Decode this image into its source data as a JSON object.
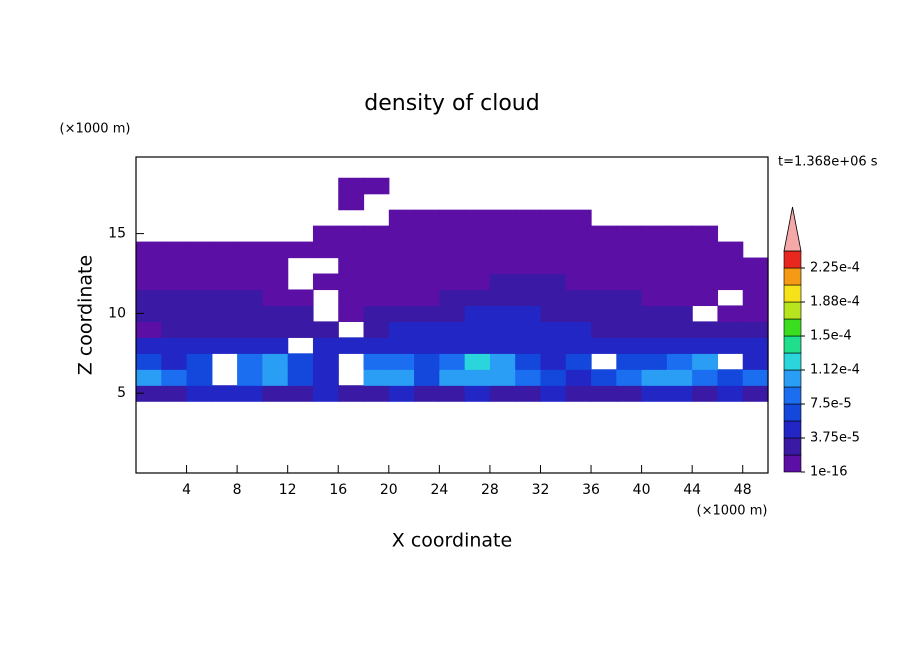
{
  "chart_data": {
    "type": "contour",
    "title": "density of cloud",
    "xlabel": "X coordinate",
    "ylabel": "Z coordinate",
    "x_unit": "(×1000 m)",
    "y_unit": "(×1000 m)",
    "annotation": "t=1.368e+06 s",
    "xlim": [
      0,
      50
    ],
    "ylim": [
      0,
      19.8
    ],
    "xticks": [
      4,
      8,
      12,
      16,
      20,
      24,
      28,
      32,
      36,
      40,
      44,
      48
    ],
    "yticks": [
      5,
      10,
      15
    ],
    "x": [
      1,
      3,
      5,
      7,
      9,
      11,
      13,
      15,
      17,
      19,
      21,
      23,
      25,
      27,
      29,
      31,
      33,
      35,
      37,
      39,
      41,
      43,
      45,
      47,
      49
    ],
    "z": [
      5,
      6,
      7,
      8,
      9,
      10,
      11,
      12,
      13,
      14,
      15,
      16,
      17,
      18
    ],
    "values": [
      [
        3e-05,
        3e-05,
        5e-05,
        5e-05,
        5e-05,
        3e-05,
        3e-05,
        5e-05,
        3e-05,
        3e-05,
        5e-05,
        3e-05,
        3e-05,
        5e-05,
        3e-05,
        3e-05,
        5e-05,
        3e-05,
        3e-05,
        3e-05,
        5e-05,
        5e-05,
        3e-05,
        5e-05,
        3e-05
      ],
      [
        0.000105,
        8.5e-05,
        6.5e-05,
        null,
        8.5e-05,
        0.000105,
        6.5e-05,
        5e-05,
        null,
        0.000105,
        0.000105,
        6.5e-05,
        0.000105,
        0.000105,
        0.000105,
        8.5e-05,
        6.5e-05,
        5e-05,
        6.5e-05,
        8.5e-05,
        0.000105,
        0.000105,
        8.5e-05,
        6.5e-05,
        8.5e-05
      ],
      [
        6.5e-05,
        5e-05,
        6.5e-05,
        null,
        8.5e-05,
        0.000105,
        6.5e-05,
        5e-05,
        null,
        8.5e-05,
        8.5e-05,
        6.5e-05,
        8.5e-05,
        0.000125,
        0.000105,
        6.5e-05,
        5e-05,
        6.5e-05,
        null,
        6.5e-05,
        6.5e-05,
        8.5e-05,
        0.000105,
        null,
        5e-05
      ],
      [
        5e-05,
        5e-05,
        5e-05,
        5e-05,
        5e-05,
        5e-05,
        null,
        5e-05,
        5e-05,
        5e-05,
        5e-05,
        5e-05,
        5e-05,
        5e-05,
        5e-05,
        5e-05,
        5e-05,
        5e-05,
        5e-05,
        5e-05,
        5e-05,
        5e-05,
        5e-05,
        5e-05,
        5e-05
      ],
      [
        1e-05,
        3e-05,
        3e-05,
        3e-05,
        3e-05,
        3e-05,
        3e-05,
        3e-05,
        null,
        3e-05,
        5e-05,
        5e-05,
        5e-05,
        5e-05,
        5e-05,
        5e-05,
        5e-05,
        5e-05,
        3e-05,
        3e-05,
        3e-05,
        3e-05,
        3e-05,
        3e-05,
        3e-05
      ],
      [
        3e-05,
        3e-05,
        3e-05,
        3e-05,
        3e-05,
        3e-05,
        3e-05,
        null,
        1e-05,
        3e-05,
        3e-05,
        3e-05,
        3e-05,
        5e-05,
        5e-05,
        5e-05,
        3e-05,
        3e-05,
        3e-05,
        3e-05,
        3e-05,
        3e-05,
        null,
        1e-05,
        1e-05
      ],
      [
        3e-05,
        3e-05,
        3e-05,
        3e-05,
        3e-05,
        1e-05,
        1e-05,
        null,
        1e-05,
        1e-05,
        1e-05,
        1e-05,
        3e-05,
        3e-05,
        3e-05,
        3e-05,
        3e-05,
        3e-05,
        3e-05,
        3e-05,
        1e-05,
        1e-05,
        1e-05,
        null,
        1e-05
      ],
      [
        1e-05,
        1e-05,
        1e-05,
        1e-05,
        1e-05,
        1e-05,
        null,
        1e-05,
        1e-05,
        1e-05,
        1e-05,
        1e-05,
        1e-05,
        1e-05,
        3e-05,
        3e-05,
        3e-05,
        1e-05,
        1e-05,
        1e-05,
        1e-05,
        1e-05,
        1e-05,
        1e-05,
        1e-05
      ],
      [
        1e-05,
        1e-05,
        1e-05,
        1e-05,
        1e-05,
        1e-05,
        null,
        null,
        1e-05,
        1e-05,
        1e-05,
        1e-05,
        1e-05,
        1e-05,
        1e-05,
        1e-05,
        1e-05,
        1e-05,
        1e-05,
        1e-05,
        1e-05,
        1e-05,
        1e-05,
        1e-05,
        1e-05
      ],
      [
        1e-05,
        1e-05,
        1e-05,
        1e-05,
        1e-05,
        1e-05,
        1e-05,
        1e-05,
        1e-05,
        1e-05,
        1e-05,
        1e-05,
        1e-05,
        1e-05,
        1e-05,
        1e-05,
        1e-05,
        1e-05,
        1e-05,
        1e-05,
        1e-05,
        1e-05,
        1e-05,
        1e-05,
        null
      ],
      [
        null,
        null,
        null,
        null,
        null,
        null,
        null,
        1e-05,
        1e-05,
        1e-05,
        1e-05,
        1e-05,
        1e-05,
        1e-05,
        1e-05,
        1e-05,
        1e-05,
        1e-05,
        1e-05,
        1e-05,
        1e-05,
        1e-05,
        1e-05,
        null,
        null
      ],
      [
        null,
        null,
        null,
        null,
        null,
        null,
        null,
        null,
        null,
        null,
        1e-05,
        1e-05,
        1e-05,
        1e-05,
        1e-05,
        1e-05,
        1e-05,
        1e-05,
        null,
        null,
        null,
        null,
        null,
        null,
        null
      ],
      [
        null,
        null,
        null,
        null,
        null,
        null,
        null,
        null,
        1e-05,
        null,
        null,
        null,
        null,
        null,
        null,
        null,
        null,
        null,
        null,
        null,
        null,
        null,
        null,
        null,
        null
      ],
      [
        null,
        null,
        null,
        null,
        null,
        null,
        null,
        null,
        1e-05,
        1e-05,
        null,
        null,
        null,
        null,
        null,
        null,
        null,
        null,
        null,
        null,
        null,
        null,
        null,
        null,
        null
      ]
    ],
    "colorbar": {
      "levels": [
        1e-16,
        1.875e-05,
        3.75e-05,
        5.625e-05,
        7.5e-05,
        9.375e-05,
        0.0001125,
        0.00013125,
        0.00015,
        0.00016875,
        0.0001875,
        0.00020625,
        0.000225,
        0.00024375
      ],
      "colors": [
        "#5b0fa5",
        "#3a1aa4",
        "#2226c4",
        "#1448dc",
        "#1a6eef",
        "#2a9ef5",
        "#2ad6dc",
        "#20df8c",
        "#3ade1e",
        "#b8e41e",
        "#f5e219",
        "#f59a14",
        "#e8281e"
      ],
      "over_color": "#f4a8a8",
      "ticks": [
        1e-16,
        {
          "value": 3.75e-05,
          "label": "3.75e-5"
        },
        {
          "value": 7.5e-05,
          "label": "7.5e-5"
        },
        {
          "value": 0.0001125,
          "label": "1.12e-4"
        },
        {
          "value": 0.00015,
          "label": "1.5e-4"
        },
        {
          "value": 0.0001875,
          "label": "1.88e-4"
        },
        {
          "value": 0.000225,
          "label": "2.25e-4"
        }
      ]
    }
  }
}
